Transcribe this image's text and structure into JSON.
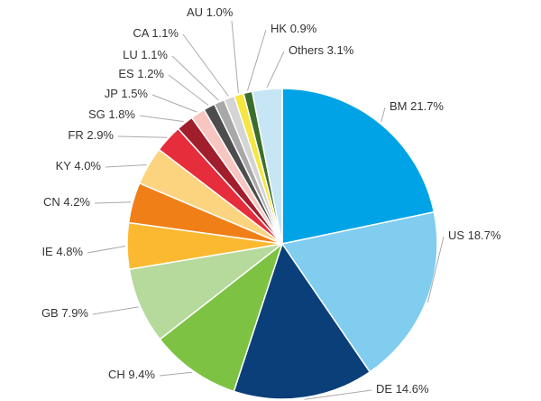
{
  "chart_data": {
    "type": "pie",
    "categories": [
      "BM",
      "US",
      "DE",
      "CH",
      "GB",
      "IE",
      "CN",
      "KY",
      "FR",
      "SG",
      "JP",
      "ES",
      "LU",
      "CA",
      "AU",
      "HK",
      "Others"
    ],
    "values": [
      21.7,
      18.7,
      14.6,
      9.4,
      7.9,
      4.8,
      4.2,
      4.0,
      2.9,
      1.8,
      1.5,
      1.2,
      1.1,
      1.1,
      1.0,
      0.9,
      3.1
    ],
    "value_labels": [
      "21.7%",
      "18.7%",
      "14.6%",
      "9.4%",
      "7.9%",
      "4.8%",
      "4.2%",
      "4.0%",
      "2.9%",
      "1.8%",
      "1.5%",
      "1.2%",
      "1.1%",
      "1.1%",
      "1.0%",
      "0.9%",
      "3.1%"
    ],
    "colors": [
      "#00a3e6",
      "#80cdf0",
      "#0b3f7a",
      "#7dc242",
      "#b6d99c",
      "#fbb931",
      "#f07f18",
      "#fcd47f",
      "#e52d3c",
      "#a11e2c",
      "#f7c6c0",
      "#4d4d4d",
      "#a8a8a8",
      "#d4d4d4",
      "#f5e642",
      "#3b6e2a",
      "#c6e5f5"
    ]
  }
}
